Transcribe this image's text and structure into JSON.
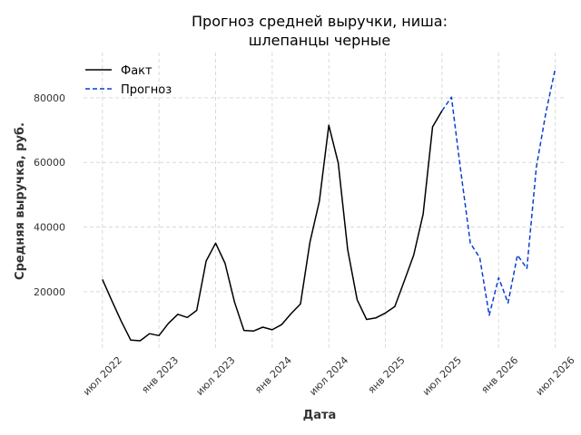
{
  "chart_data": {
    "type": "line",
    "title": "Прогноз средней выручки, ниша:\nшлепанцы черные",
    "xlabel": "Дата",
    "ylabel": "Средняя выручка, руб.",
    "x_ticks": [
      {
        "date": "2022-07",
        "label": "июл 2022"
      },
      {
        "date": "2023-01",
        "label": "янв 2023"
      },
      {
        "date": "2023-07",
        "label": "июл 2023"
      },
      {
        "date": "2024-01",
        "label": "янв 2024"
      },
      {
        "date": "2024-07",
        "label": "июл 2024"
      },
      {
        "date": "2025-01",
        "label": "янв 2025"
      },
      {
        "date": "2025-07",
        "label": "июл 2025"
      },
      {
        "date": "2026-01",
        "label": "янв 2026"
      },
      {
        "date": "2026-07",
        "label": "июл 2026"
      }
    ],
    "y_ticks": [
      20000,
      40000,
      60000,
      80000
    ],
    "xlim": [
      "2022-05",
      "2026-08"
    ],
    "ylim": [
      2000,
      94000
    ],
    "grid": true,
    "legend_position": "top-left",
    "colors": {
      "fact": "#000000",
      "forecast": "#0a3fd1",
      "grid": "#d9d9d9"
    },
    "series": [
      {
        "name": "Факт",
        "style": "solid",
        "x": [
          "2022-07",
          "2022-08",
          "2022-09",
          "2022-10",
          "2022-11",
          "2022-12",
          "2023-01",
          "2023-02",
          "2023-03",
          "2023-04",
          "2023-05",
          "2023-06",
          "2023-07",
          "2023-08",
          "2023-09",
          "2023-10",
          "2023-11",
          "2023-12",
          "2024-01",
          "2024-02",
          "2024-03",
          "2024-04",
          "2024-05",
          "2024-06",
          "2024-07",
          "2024-08",
          "2024-09",
          "2024-10",
          "2024-11",
          "2024-12",
          "2025-01",
          "2025-02",
          "2025-03",
          "2025-04",
          "2025-05",
          "2025-06",
          "2025-07"
        ],
        "values": [
          23800,
          17200,
          10800,
          5000,
          4800,
          7000,
          6400,
          10200,
          13000,
          12000,
          14200,
          29500,
          35000,
          28800,
          16800,
          8000,
          7800,
          9000,
          8200,
          9800,
          13200,
          16200,
          35300,
          48000,
          71500,
          59800,
          33000,
          17500,
          11400,
          11900,
          13400,
          15400,
          23300,
          31300,
          44000,
          71000,
          76000
        ]
      },
      {
        "name": "Прогноз",
        "style": "dashed",
        "x": [
          "2025-07",
          "2025-08",
          "2025-09",
          "2025-10",
          "2025-11",
          "2025-12",
          "2026-01",
          "2026-02",
          "2026-03",
          "2026-04",
          "2026-05",
          "2026-06",
          "2026-07"
        ],
        "values": [
          76000,
          80200,
          57000,
          35000,
          30500,
          12700,
          24300,
          16500,
          31300,
          27200,
          58500,
          75200,
          89000
        ]
      }
    ]
  }
}
